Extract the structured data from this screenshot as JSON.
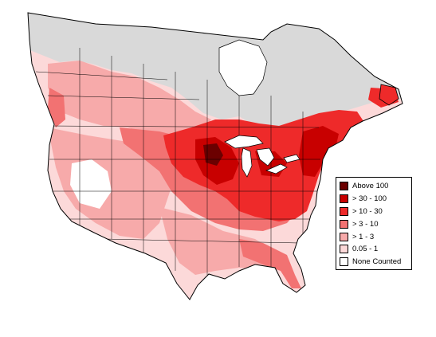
{
  "legend": {
    "items": [
      {
        "label": "Above 100",
        "color": "#6b0000"
      },
      {
        "label": "> 30 - 100",
        "color": "#c80000"
      },
      {
        "label": "> 10 - 30",
        "color": "#ee2a2a"
      },
      {
        "label": "> 3 - 10",
        "color": "#f27272"
      },
      {
        "label": "> 1 - 3",
        "color": "#f7aaaa"
      },
      {
        "label": "0.05 - 1",
        "color": "#fcd9d9"
      },
      {
        "label": "None Counted",
        "color": "#ffffff"
      }
    ]
  },
  "map": {
    "no_data_color": "#d9d9d9",
    "outline_color": "#000000"
  }
}
